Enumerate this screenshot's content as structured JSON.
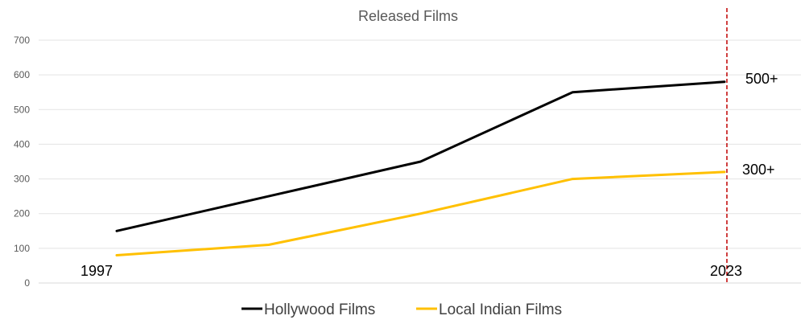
{
  "chart_data": {
    "type": "line",
    "title": "Released Films",
    "x": [
      0,
      1,
      2,
      3,
      4
    ],
    "series": [
      {
        "name": "Hollywood Films",
        "color": "#000000",
        "values": [
          150,
          250,
          350,
          550,
          580
        ]
      },
      {
        "name": "Local Indian Films",
        "color": "#ffc000",
        "values": [
          80,
          110,
          200,
          300,
          320
        ]
      }
    ],
    "ylim": [
      0,
      700
    ],
    "yticks": [
      0,
      100,
      200,
      300,
      400,
      500,
      600,
      700
    ],
    "grid": true,
    "legend": "bottom",
    "annotations": {
      "start_year": "1997",
      "end_year": "2023",
      "hollywood_label": "500+",
      "indian_label": "300+",
      "marker_line_color": "#c00000"
    }
  }
}
